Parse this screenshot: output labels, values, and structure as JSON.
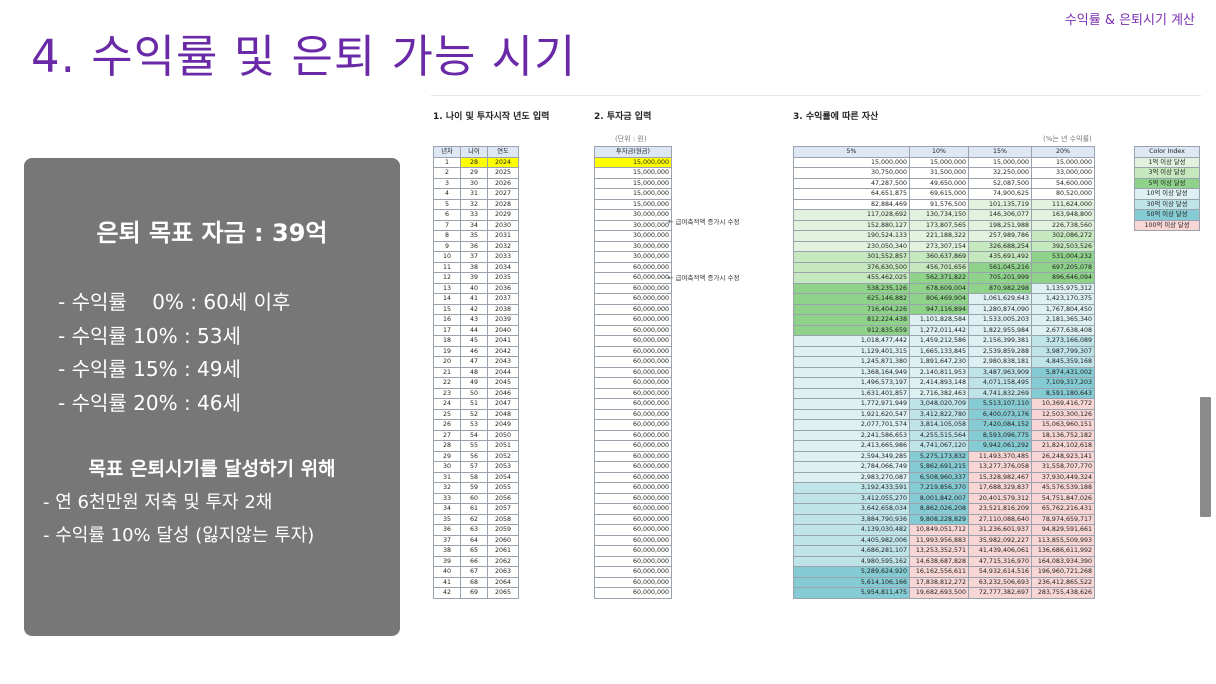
{
  "header": {
    "corner": "수익률 & 은퇴시기 계산",
    "title": "4. 수익률 및 은퇴 가능 시기"
  },
  "panel": {
    "goal": "은퇴 목표 자금 : 39억",
    "rates": [
      "- 수익률    0% : 60세 이후",
      "- 수익률 10% : 53세",
      "- 수익률 15% : 49세",
      "- 수익률 20% : 46세"
    ],
    "how_title": "목표 은퇴시기를 달성하기 위해",
    "how": [
      "- 연 6천만원 저축 및 투자 2채",
      "- 수익률 10% 달성 (잃지않는 투자)"
    ]
  },
  "sheet": {
    "sec1": "1. 나이 및 투자시작 년도 입력",
    "sec2": "2. 투자금 입력",
    "sec3": "3. 수익률에 따른 자산",
    "unit_note": "(단위 : 원)",
    "rate_note": "(%는 년 수익률)",
    "t1_headers": [
      "년차",
      "나이",
      "연도"
    ],
    "t2_header": "투자금(원금)",
    "t3_headers": [
      "5%",
      "10%",
      "15%",
      "20%"
    ],
    "note1": "← 급여축적액 증가시 수정",
    "note2": "← 급여축적액 증가시 수정",
    "amounts": [
      "15,000,000",
      "15,000,000",
      "15,000,000",
      "15,000,000",
      "15,000,000",
      "30,000,000",
      "30,000,000",
      "30,000,000",
      "30,000,000",
      "30,000,000",
      "60,000,000",
      "60,000,000",
      "60,000,000",
      "60,000,000",
      "60,000,000",
      "60,000,000",
      "60,000,000",
      "60,000,000",
      "60,000,000",
      "60,000,000",
      "60,000,000",
      "60,000,000",
      "60,000,000",
      "60,000,000",
      "60,000,000",
      "60,000,000",
      "60,000,000",
      "60,000,000",
      "60,000,000",
      "60,000,000",
      "60,000,000",
      "60,000,000",
      "60,000,000",
      "60,000,000",
      "60,000,000",
      "60,000,000",
      "60,000,000",
      "60,000,000",
      "60,000,000",
      "60,000,000",
      "60,000,000",
      "60,000,000"
    ],
    "r5": [
      "15,000,000",
      "30,750,000",
      "47,287,500",
      "64,651,875",
      "82,884,469",
      "117,028,692",
      "152,880,127",
      "190,524,133",
      "230,050,340",
      "301,552,857",
      "376,630,500",
      "455,462,025",
      "538,235,126",
      "625,146,882",
      "716,404,226",
      "812,224,438",
      "912,835,659",
      "1,018,477,442",
      "1,129,401,315",
      "1,245,871,380",
      "1,368,164,949",
      "1,496,573,197",
      "1,631,401,857",
      "1,772,971,949",
      "1,921,620,547",
      "2,077,701,574",
      "2,241,586,653",
      "2,413,665,986",
      "2,594,349,285",
      "2,784,066,749",
      "2,983,270,087",
      "3,192,433,591",
      "3,412,055,270",
      "3,642,658,034",
      "3,884,790,936",
      "4,139,030,482",
      "4,405,982,006",
      "4,686,281,107",
      "4,980,595,162",
      "5,289,624,920",
      "5,614,106,166",
      "5,954,811,475"
    ],
    "r10": [
      "15,000,000",
      "31,500,000",
      "49,650,000",
      "69,615,000",
      "91,576,500",
      "130,734,150",
      "173,807,565",
      "221,188,322",
      "273,307,154",
      "360,637,869",
      "456,701,656",
      "562,371,822",
      "678,609,004",
      "806,469,904",
      "947,116,894",
      "1,101,828,584",
      "1,272,011,442",
      "1,459,212,586",
      "1,665,133,845",
      "1,891,647,230",
      "2,140,811,953",
      "2,414,893,148",
      "2,716,382,463",
      "3,048,020,709",
      "3,412,822,780",
      "3,814,105,058",
      "4,255,515,564",
      "4,741,067,120",
      "5,275,173,832",
      "5,862,691,215",
      "6,508,960,337",
      "7,219,856,370",
      "8,001,842,007",
      "8,862,026,208",
      "9,808,228,829",
      "10,849,051,712",
      "11,993,956,883",
      "13,253,352,571",
      "14,638,687,828",
      "16,162,556,611",
      "17,838,812,272",
      "19,682,693,500"
    ],
    "r15": [
      "15,000,000",
      "32,250,000",
      "52,087,500",
      "74,900,625",
      "101,135,719",
      "146,306,077",
      "198,251,988",
      "257,989,786",
      "326,688,254",
      "435,691,492",
      "561,045,216",
      "705,201,999",
      "870,982,298",
      "1,061,629,643",
      "1,280,874,090",
      "1,533,005,203",
      "1,822,955,984",
      "2,156,399,381",
      "2,539,859,288",
      "2,980,838,181",
      "3,487,963,909",
      "4,071,158,495",
      "4,741,832,269",
      "5,513,107,110",
      "6,400,073,176",
      "7,420,084,152",
      "8,593,096,775",
      "9,942,061,292",
      "11,493,370,485",
      "13,277,376,058",
      "15,328,982,467",
      "17,688,329,837",
      "20,401,579,312",
      "23,521,816,209",
      "27,110,088,640",
      "31,236,601,937",
      "35,982,092,227",
      "41,439,406,061",
      "47,715,316,970",
      "54,932,614,516",
      "63,232,506,693",
      "72,777,382,697"
    ],
    "r20": [
      "15,000,000",
      "33,000,000",
      "54,600,000",
      "80,520,000",
      "111,624,000",
      "163,948,800",
      "226,738,560",
      "302,086,272",
      "392,503,526",
      "531,004,232",
      "697,205,078",
      "896,646,094",
      "1,135,975,312",
      "1,423,170,375",
      "1,767,804,450",
      "2,181,365,340",
      "2,677,638,408",
      "3,273,166,089",
      "3,987,799,307",
      "4,845,359,168",
      "5,874,431,002",
      "7,109,317,203",
      "8,591,180,643",
      "10,369,416,772",
      "12,503,300,126",
      "15,063,960,151",
      "18,136,752,182",
      "21,824,102,618",
      "26,248,923,141",
      "31,558,707,770",
      "37,930,449,324",
      "45,576,539,188",
      "54,751,847,026",
      "65,762,216,431",
      "78,974,659,717",
      "94,829,591,661",
      "113,855,509,993",
      "136,686,611,992",
      "164,083,934,390",
      "196,960,721,268",
      "236,412,865,522",
      "283,755,438,626"
    ],
    "legend_title": "Color Index",
    "legend": [
      {
        "label": "1억 이상 달성",
        "color": "#e2f2de"
      },
      {
        "label": "3억 이상 달성",
        "color": "#c6e8bf"
      },
      {
        "label": "5억 이상 달성",
        "color": "#8fd38a"
      },
      {
        "label": "10억 이상 달성",
        "color": "#ddf0f2"
      },
      {
        "label": "30억 이상 달성",
        "color": "#bfe4e8"
      },
      {
        "label": "50억 이상 달성",
        "color": "#85cbd3"
      },
      {
        "label": "100억 이상 달성",
        "color": "#f8d6d6"
      }
    ]
  }
}
